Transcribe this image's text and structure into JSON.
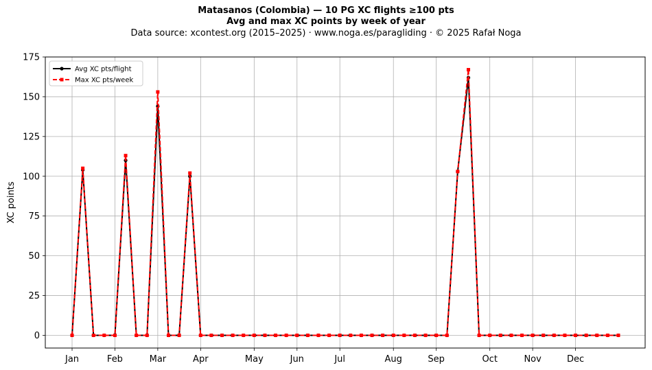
{
  "chart_data": {
    "type": "line",
    "title": "Matasanos (Colombia)  —  10 PG XC flights ≥100 pts",
    "subtitle": "Avg and max XC points by week of year",
    "source": "Data source: xcontest.org (2015–2025)  ·  www.noga.es/paragliding  ·  © 2025 Rafał Noga",
    "xlabel": "",
    "ylabel": "XC points",
    "ylim": [
      -8,
      175
    ],
    "xlim": [
      -2.5,
      53.5
    ],
    "grid": true,
    "legend_position": "top-left",
    "x_ticks": [
      {
        "label": "Jan",
        "x": 0
      },
      {
        "label": "Feb",
        "x": 4
      },
      {
        "label": "Mar",
        "x": 8
      },
      {
        "label": "Apr",
        "x": 12
      },
      {
        "label": "May",
        "x": 17
      },
      {
        "label": "Jun",
        "x": 21
      },
      {
        "label": "Jul",
        "x": 25
      },
      {
        "label": "Aug",
        "x": 30
      },
      {
        "label": "Sep",
        "x": 34
      },
      {
        "label": "Oct",
        "x": 39
      },
      {
        "label": "Nov",
        "x": 43
      },
      {
        "label": "Dec",
        "x": 47
      }
    ],
    "y_ticks": [
      0,
      25,
      50,
      75,
      100,
      125,
      150,
      175
    ],
    "x": [
      0,
      1,
      2,
      3,
      4,
      5,
      6,
      7,
      8,
      9,
      10,
      11,
      12,
      13,
      14,
      15,
      16,
      17,
      18,
      19,
      20,
      21,
      22,
      23,
      24,
      25,
      26,
      27,
      28,
      29,
      30,
      31,
      32,
      33,
      34,
      35,
      36,
      37,
      38,
      39,
      40,
      41,
      42,
      43,
      44,
      45,
      46,
      47,
      48,
      49,
      50,
      51
    ],
    "series": [
      {
        "name": "Avg XC pts/flight",
        "color": "#000000",
        "style": "solid",
        "marker": "circle",
        "values": [
          0,
          104,
          0,
          0,
          0,
          110,
          0,
          0,
          144,
          0,
          0,
          100,
          0,
          0,
          0,
          0,
          0,
          0,
          0,
          0,
          0,
          0,
          0,
          0,
          0,
          0,
          0,
          0,
          0,
          0,
          0,
          0,
          0,
          0,
          0,
          0,
          103,
          162,
          0,
          0,
          0,
          0,
          0,
          0,
          0,
          0,
          0,
          0,
          0,
          0,
          0,
          0
        ]
      },
      {
        "name": "Max XC pts/week",
        "color": "#ff0000",
        "style": "dashed",
        "marker": "square",
        "values": [
          0,
          105,
          0,
          0,
          0,
          113,
          0,
          0,
          153,
          0,
          0,
          102,
          0,
          0,
          0,
          0,
          0,
          0,
          0,
          0,
          0,
          0,
          0,
          0,
          0,
          0,
          0,
          0,
          0,
          0,
          0,
          0,
          0,
          0,
          0,
          0,
          103,
          167,
          0,
          0,
          0,
          0,
          0,
          0,
          0,
          0,
          0,
          0,
          0,
          0,
          0,
          0
        ]
      }
    ]
  }
}
